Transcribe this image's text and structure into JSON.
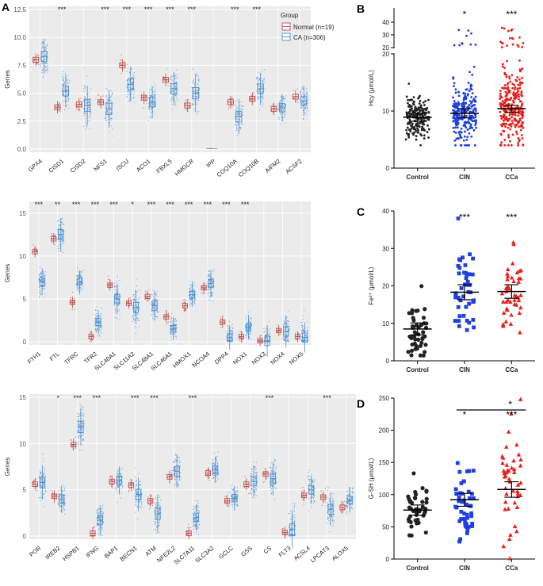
{
  "colors": {
    "normal": "#c0504d",
    "ca": "#4a8fd0",
    "control": "#222222",
    "cin": "#1f3fe0",
    "cca": "#e8201c",
    "gridbg": "#ebebeb"
  },
  "chart_data": [
    {
      "id": "A",
      "panel_label": "A",
      "type": "boxplot",
      "ylabel": "Genes",
      "ylim": [
        0,
        12.5
      ],
      "yticks": [
        "0.0",
        "2.5",
        "5.0",
        "7.5",
        "10.0",
        "12.5"
      ],
      "legend_title": "Group",
      "legend": [
        "Normal (n=19)",
        "CA (n=306)"
      ],
      "categories": [
        "GPX4",
        "CISD1",
        "CISD2",
        "NFS1",
        "ISCU",
        "ACO1",
        "FBXL5",
        "HMGCR",
        "IPP",
        "COQ10A",
        "COQ10B",
        "AIFM2",
        "ACSF2"
      ],
      "normal_median": [
        8.0,
        3.75,
        4.0,
        4.2,
        7.5,
        4.6,
        6.2,
        3.9,
        null,
        4.2,
        4.5,
        3.6,
        4.7
      ],
      "ca_median": [
        8.3,
        5.2,
        3.9,
        3.6,
        5.8,
        4.2,
        5.4,
        5.0,
        null,
        2.9,
        5.4,
        3.7,
        4.3
      ],
      "significance": [
        "",
        "***",
        "",
        "***",
        "***",
        "***",
        "***",
        "***",
        "",
        "***",
        "***",
        "",
        ""
      ]
    },
    {
      "id": "A2",
      "type": "boxplot",
      "ylabel": "Genes",
      "ylim": [
        0,
        16
      ],
      "yticks": [
        "0",
        "5",
        "10",
        "15"
      ],
      "categories": [
        "FTH1",
        "FTL",
        "TFRC",
        "TFR2",
        "SLC40A1",
        "SLC11A2",
        "SLC48A1",
        "SLC46A1",
        "HMOX1",
        "NCOA4",
        "DPP4",
        "NOX1",
        "NOX3",
        "NOX4",
        "NOX5"
      ],
      "normal_median": [
        10.5,
        12.0,
        4.6,
        0.6,
        6.6,
        4.5,
        5.3,
        2.9,
        4.2,
        6.3,
        2.3,
        0.6,
        0.1,
        1.3,
        0.6
      ],
      "ca_median": [
        7.0,
        12.5,
        7.0,
        2.3,
        5.0,
        4.0,
        4.2,
        1.5,
        5.5,
        6.8,
        0.5,
        1.7,
        0.1,
        1.2,
        0.5
      ],
      "significance": [
        "***",
        "**",
        "***",
        "***",
        "***",
        "*",
        "***",
        "***",
        "***",
        "***",
        "***",
        "***",
        "",
        "",
        ""
      ]
    },
    {
      "id": "A3",
      "type": "boxplot",
      "ylabel": "Genes",
      "ylim": [
        0,
        15
      ],
      "yticks": [
        "0",
        "5",
        "10",
        "15"
      ],
      "categories": [
        "POR",
        "IREB2",
        "HSPB1",
        "IFNG",
        "BAP1",
        "BECN1",
        "ATM",
        "NFE2L2",
        "SLC7A11",
        "SLC3A2",
        "GCLC",
        "GSS",
        "CS",
        "FLT3",
        "ACSL4",
        "LPCAT3",
        "ALOX5"
      ],
      "normal_median": [
        5.6,
        4.3,
        9.9,
        0.3,
        5.9,
        5.5,
        3.8,
        6.4,
        0.3,
        6.8,
        3.8,
        5.6,
        6.7,
        0.4,
        4.4,
        4.2,
        3.1
      ],
      "ca_median": [
        5.8,
        4.0,
        11.8,
        1.7,
        6.0,
        4.5,
        2.4,
        7.0,
        2.0,
        7.2,
        4.1,
        5.9,
        6.2,
        0.7,
        5.0,
        2.9,
        3.9
      ],
      "significance": [
        "",
        "*",
        "***",
        "***",
        "",
        "***",
        "***",
        "",
        "***",
        "",
        "",
        "",
        "***",
        "",
        "",
        "***",
        ""
      ]
    },
    {
      "id": "B",
      "panel_label": "B",
      "type": "scatter",
      "ylabel": "Hcy (μmol/L)",
      "ylim": [
        0,
        40
      ],
      "yticks": [
        "0",
        "10",
        "20",
        "20",
        "30",
        "40"
      ],
      "categories": [
        "Control",
        "CIN",
        "CCa"
      ],
      "means": [
        8.9,
        9.6,
        10.4
      ],
      "sem": [
        0.35,
        0.4,
        0.3
      ],
      "significance": [
        "",
        "*",
        "***"
      ]
    },
    {
      "id": "C",
      "panel_label": "C",
      "type": "scatter",
      "ylabel": "Fe²⁺ (μmol/L)",
      "ylim": [
        0,
        40
      ],
      "yticks": [
        "0",
        "10",
        "20",
        "30",
        "40"
      ],
      "categories": [
        "Control",
        "CIN",
        "CCa"
      ],
      "means": [
        8.5,
        18.3,
        18.5
      ],
      "sem": [
        0.8,
        1.0,
        0.9
      ],
      "significance": [
        "",
        "***",
        "***"
      ]
    },
    {
      "id": "D",
      "panel_label": "D",
      "type": "scatter",
      "ylabel": "G-SH (μmol/L)",
      "ylim": [
        0,
        250
      ],
      "yticks": [
        "0",
        "50",
        "100",
        "150",
        "200",
        "250"
      ],
      "categories": [
        "Control",
        "CIN",
        "CCa"
      ],
      "means": [
        76,
        92,
        108
      ],
      "sem": [
        4,
        5,
        6
      ],
      "significance": [
        "",
        "*",
        "***"
      ],
      "bracket_label": "*"
    }
  ]
}
